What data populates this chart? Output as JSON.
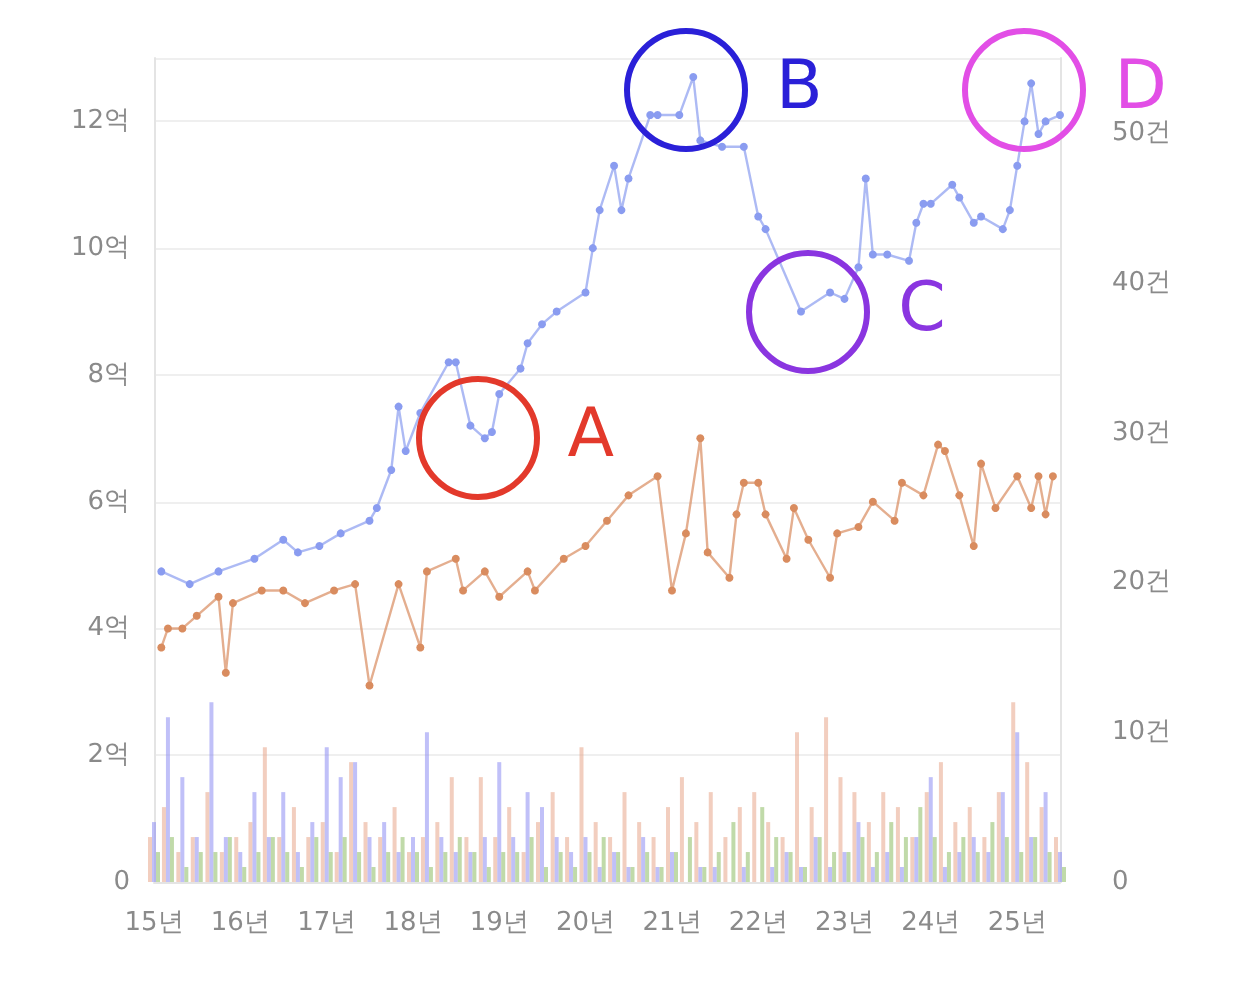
{
  "chart_data": {
    "type": "line",
    "x": [
      "2015-01",
      "2015-03",
      "2015-05",
      "2015-07",
      "2015-09",
      "2015-11",
      "2016-01",
      "2016-03",
      "2016-05",
      "2016-07",
      "2016-09",
      "2016-11",
      "2017-01",
      "2017-03",
      "2017-05",
      "2017-07",
      "2017-09",
      "2017-11",
      "2018-01",
      "2018-03",
      "2018-05",
      "2018-07",
      "2018-09",
      "2018-11",
      "2019-01",
      "2019-03",
      "2019-05",
      "2019-07",
      "2019-09",
      "2019-11",
      "2020-01",
      "2020-03",
      "2020-05",
      "2020-07",
      "2020-09",
      "2020-11",
      "2021-01",
      "2021-03",
      "2021-05",
      "2021-07",
      "2021-09",
      "2021-11",
      "2022-01",
      "2022-03",
      "2022-05",
      "2022-07",
      "2022-09",
      "2022-11",
      "2023-01",
      "2023-03",
      "2023-05",
      "2023-07",
      "2023-09",
      "2023-11",
      "2024-01",
      "2024-03",
      "2024-05",
      "2024-07",
      "2024-09",
      "2024-11",
      "2025-01",
      "2025-03",
      "2025-05",
      "2025-07"
    ],
    "series": [
      {
        "type": "bar",
        "axis": "y2",
        "color": "#e8a58a",
        "values": [
          3,
          5,
          2,
          3,
          6,
          2,
          3,
          4,
          9,
          3,
          5,
          3,
          4,
          2,
          8,
          4,
          3,
          5,
          2,
          3,
          4,
          7,
          3,
          7,
          3,
          5,
          2,
          4,
          6,
          3,
          9,
          4,
          3,
          6,
          4,
          3,
          5,
          7,
          4,
          6,
          3,
          5,
          6,
          4,
          3,
          10,
          5,
          11,
          7,
          6,
          4,
          6,
          5,
          3,
          6,
          8,
          4,
          5,
          3,
          6,
          12,
          8,
          5,
          3
        ]
      },
      {
        "type": "bar",
        "axis": "y2",
        "color": "#8c8cf2",
        "values": [
          4,
          11,
          7,
          3,
          12,
          3,
          2,
          6,
          3,
          6,
          2,
          4,
          9,
          7,
          8,
          3,
          4,
          2,
          3,
          10,
          3,
          2,
          2,
          3,
          8,
          3,
          6,
          5,
          3,
          2,
          3,
          1,
          2,
          1,
          3,
          1,
          2,
          0,
          1,
          1,
          0,
          1,
          0,
          1,
          2,
          1,
          3,
          1,
          2,
          4,
          1,
          2,
          1,
          3,
          7,
          1,
          2,
          3,
          2,
          6,
          10,
          3,
          6,
          2
        ]
      },
      {
        "type": "bar",
        "axis": "y2",
        "color": "#8cbc62",
        "values": [
          2,
          3,
          1,
          2,
          2,
          3,
          1,
          2,
          3,
          2,
          1,
          3,
          2,
          3,
          2,
          1,
          2,
          3,
          2,
          1,
          2,
          3,
          2,
          1,
          2,
          2,
          3,
          1,
          2,
          1,
          2,
          3,
          2,
          1,
          2,
          1,
          2,
          3,
          1,
          2,
          4,
          2,
          5,
          3,
          2,
          1,
          3,
          2,
          2,
          3,
          2,
          4,
          3,
          5,
          3,
          2,
          3,
          2,
          4,
          3,
          2,
          3,
          2,
          1
        ]
      },
      {
        "color": "#d98c5f",
        "x": [
          "2015-02",
          "2015-03",
          "2015-05",
          "2015-07",
          "2015-10",
          "2015-11",
          "2015-12",
          "2016-04",
          "2016-07",
          "2016-10",
          "2017-02",
          "2017-05",
          "2017-07",
          "2017-11",
          "2018-02",
          "2018-03",
          "2018-07",
          "2018-08",
          "2018-11",
          "2019-01",
          "2019-05",
          "2019-06",
          "2019-10",
          "2020-01",
          "2020-04",
          "2020-07",
          "2020-11",
          "2021-01",
          "2021-03",
          "2021-05",
          "2021-06",
          "2021-09",
          "2021-10",
          "2021-11",
          "2022-01",
          "2022-02",
          "2022-05",
          "2022-06",
          "2022-08",
          "2022-11",
          "2022-12",
          "2023-03",
          "2023-05",
          "2023-08",
          "2023-09",
          "2023-12",
          "2024-02",
          "2024-03",
          "2024-05",
          "2024-07",
          "2024-08",
          "2024-10",
          "2025-01",
          "2025-03",
          "2025-04",
          "2025-05",
          "2025-06"
        ],
        "values": [
          3.7,
          4.0,
          4.0,
          4.2,
          4.5,
          3.3,
          4.4,
          4.6,
          4.6,
          4.4,
          4.6,
          4.7,
          3.1,
          4.7,
          3.7,
          4.9,
          5.1,
          4.6,
          4.9,
          4.5,
          4.9,
          4.6,
          5.1,
          5.3,
          5.7,
          6.1,
          6.4,
          4.6,
          5.5,
          7.0,
          5.2,
          4.8,
          5.8,
          6.3,
          6.3,
          5.8,
          5.1,
          5.9,
          5.4,
          4.8,
          5.5,
          5.6,
          6.0,
          5.7,
          6.3,
          6.1,
          6.9,
          6.8,
          6.1,
          5.3,
          6.6,
          5.9,
          6.4,
          5.9,
          6.4,
          5.8,
          6.4
        ]
      },
      {
        "color": "#8a9cf0",
        "x": [
          "2015-02",
          "2015-06",
          "2015-10",
          "2016-03",
          "2016-07",
          "2016-09",
          "2016-12",
          "2017-03",
          "2017-07",
          "2017-08",
          "2017-10",
          "2017-11",
          "2017-12",
          "2018-02",
          "2018-06",
          "2018-07",
          "2018-09",
          "2018-11",
          "2018-12",
          "2019-01",
          "2019-04",
          "2019-05",
          "2019-07",
          "2019-09",
          "2020-01",
          "2020-02",
          "2020-03",
          "2020-05",
          "2020-06",
          "2020-07",
          "2020-10",
          "2020-11",
          "2021-02",
          "2021-04",
          "2021-05",
          "2021-08",
          "2021-11",
          "2022-01",
          "2022-02",
          "2022-07",
          "2022-11",
          "2023-01",
          "2023-03",
          "2023-04",
          "2023-05",
          "2023-07",
          "2023-10",
          "2023-11",
          "2023-12",
          "2024-01",
          "2024-04",
          "2024-05",
          "2024-07",
          "2024-08",
          "2024-11",
          "2024-12",
          "2025-01",
          "2025-02",
          "2025-03",
          "2025-04",
          "2025-05",
          "2025-07"
        ],
        "values": [
          4.9,
          4.7,
          4.9,
          5.1,
          5.4,
          5.2,
          5.3,
          5.5,
          5.7,
          5.9,
          6.5,
          7.5,
          6.8,
          7.4,
          8.2,
          8.2,
          7.2,
          7.0,
          7.1,
          7.7,
          8.1,
          8.5,
          8.8,
          9.0,
          9.3,
          10.0,
          10.6,
          11.3,
          10.6,
          11.1,
          12.1,
          12.1,
          12.1,
          12.7,
          11.7,
          11.6,
          11.6,
          10.5,
          10.3,
          9.0,
          9.3,
          9.2,
          9.7,
          11.1,
          9.9,
          9.9,
          9.8,
          10.4,
          10.7,
          10.7,
          11.0,
          10.8,
          10.4,
          10.5,
          10.3,
          10.6,
          11.3,
          12.0,
          12.6,
          11.8,
          12.0,
          12.1
        ]
      }
    ],
    "xlim": [
      "2015-01",
      "2025-07"
    ],
    "xticks": [
      {
        "value": "2015-01",
        "label": "15년"
      },
      {
        "value": "2016-01",
        "label": "16년"
      },
      {
        "value": "2017-01",
        "label": "17년"
      },
      {
        "value": "2018-01",
        "label": "18년"
      },
      {
        "value": "2019-01",
        "label": "19년"
      },
      {
        "value": "2020-01",
        "label": "20년"
      },
      {
        "value": "2021-01",
        "label": "21년"
      },
      {
        "value": "2022-01",
        "label": "22년"
      },
      {
        "value": "2023-01",
        "label": "23년"
      },
      {
        "value": "2024-01",
        "label": "24년"
      },
      {
        "value": "2025-01",
        "label": "25년"
      }
    ],
    "ylim": [
      0,
      13
    ],
    "yticks": [
      0,
      {
        "value": 2,
        "label": "2억"
      },
      {
        "value": 4,
        "label": "4억"
      },
      {
        "value": 6,
        "label": "6억"
      },
      {
        "value": 8,
        "label": "8억"
      },
      {
        "value": 10,
        "label": "10억"
      },
      {
        "value": 12,
        "label": "12억"
      }
    ],
    "y2lim": [
      0,
      55
    ],
    "y2ticks": [
      0,
      {
        "value": 10,
        "label": "10건"
      },
      {
        "value": 20,
        "label": "20건"
      },
      {
        "value": 30,
        "label": "30건"
      },
      {
        "value": 40,
        "label": "40건"
      },
      {
        "value": 50,
        "label": "50건"
      }
    ],
    "annotations": [
      {
        "text": "A",
        "x": "2018-10",
        "y": 7.0
      },
      {
        "text": "B",
        "x": "2021-03",
        "y": 12.5
      },
      {
        "text": "C",
        "x": "2022-08",
        "y": 9.0
      },
      {
        "text": "D",
        "x": "2025-02",
        "y": 12.5
      }
    ],
    "grid": "y",
    "marker": "circle",
    "line_style": "solid"
  }
}
